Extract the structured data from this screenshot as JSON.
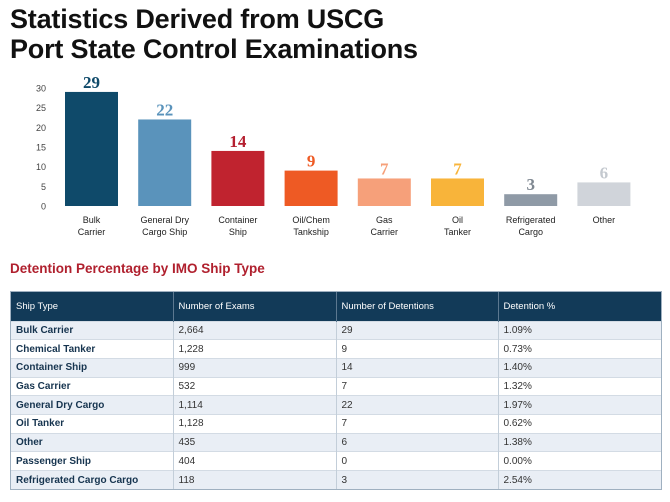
{
  "title": {
    "line1": "Statistics Derived from USCG",
    "line2": "Port State Control Examinations"
  },
  "chart_data": {
    "type": "bar",
    "categories": [
      [
        "Bulk",
        "Carrier"
      ],
      [
        "General Dry",
        "Cargo Ship"
      ],
      [
        "Container",
        "Ship"
      ],
      [
        "Oil/Chem",
        "Tankship"
      ],
      [
        "Gas",
        "Carrier"
      ],
      [
        "Oil",
        "Tanker"
      ],
      [
        "Refrigerated",
        "Cargo"
      ],
      [
        "Other"
      ]
    ],
    "values": [
      29,
      22,
      14,
      9,
      7,
      7,
      3,
      6
    ],
    "value_labels": [
      "29",
      "22",
      "14",
      "9",
      "7",
      "7",
      "3",
      "6"
    ],
    "bar_colors": [
      "#0f4a6a",
      "#5a93bb",
      "#c0232f",
      "#ee5a24",
      "#f6a07a",
      "#f8b43a",
      "#8f9aa6",
      "#d0d4da"
    ],
    "label_colors": [
      "#0f4a6a",
      "#5a93bb",
      "#b52030",
      "#ee5a24",
      "#f6a07a",
      "#f8b43a",
      "#7e8790",
      "#c4c9cf"
    ],
    "ylim": [
      0,
      30
    ],
    "yticks": [
      0,
      5,
      10,
      15,
      20,
      25,
      30
    ],
    "grid": false,
    "xlabel": "",
    "ylabel": ""
  },
  "table": {
    "section_title": "Detention Percentage by IMO Ship Type",
    "headers": [
      "Ship Type",
      "Number of Exams",
      "Number of Detentions",
      "Detention %"
    ],
    "rows": [
      [
        "Bulk Carrier",
        "2,664",
        "29",
        "1.09%"
      ],
      [
        "Chemical Tanker",
        "1,228",
        "9",
        "0.73%"
      ],
      [
        "Container Ship",
        "999",
        "14",
        "1.40%"
      ],
      [
        "Gas Carrier",
        "532",
        "7",
        "1.32%"
      ],
      [
        "General Dry Cargo",
        "1,114",
        "22",
        "1.97%"
      ],
      [
        "Oil Tanker",
        "1,128",
        "7",
        "0.62%"
      ],
      [
        "Other",
        "435",
        "6",
        "1.38%"
      ],
      [
        "Passenger Ship",
        "404",
        "0",
        "0.00%"
      ],
      [
        "Refrigerated Cargo Cargo",
        "118",
        "3",
        "2.54%"
      ]
    ]
  }
}
